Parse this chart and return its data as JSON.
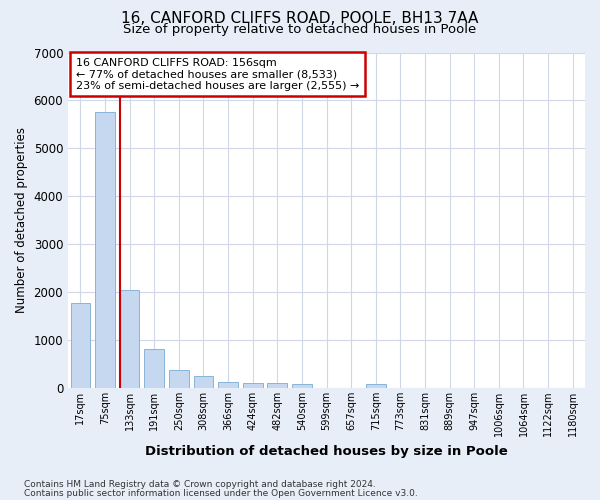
{
  "title1": "16, CANFORD CLIFFS ROAD, POOLE, BH13 7AA",
  "title2": "Size of property relative to detached houses in Poole",
  "xlabel": "Distribution of detached houses by size in Poole",
  "ylabel": "Number of detached properties",
  "categories": [
    "17sqm",
    "75sqm",
    "133sqm",
    "191sqm",
    "250sqm",
    "308sqm",
    "366sqm",
    "424sqm",
    "482sqm",
    "540sqm",
    "599sqm",
    "657sqm",
    "715sqm",
    "773sqm",
    "831sqm",
    "889sqm",
    "947sqm",
    "1006sqm",
    "1064sqm",
    "1122sqm",
    "1180sqm"
  ],
  "values": [
    1780,
    5750,
    2050,
    820,
    370,
    240,
    130,
    110,
    100,
    80,
    0,
    0,
    80,
    0,
    0,
    0,
    0,
    0,
    0,
    0,
    0
  ],
  "bar_color": "#c5d8f0",
  "bar_edge_color": "#7aadd4",
  "vline_color": "#cc0000",
  "vline_pos": 1.6,
  "annotation_line1": "16 CANFORD CLIFFS ROAD: 156sqm",
  "annotation_line2": "← 77% of detached houses are smaller (8,533)",
  "annotation_line3": "23% of semi-detached houses are larger (2,555) →",
  "annotation_box_edgecolor": "#cc0000",
  "ylim": [
    0,
    7000
  ],
  "yticks": [
    0,
    1000,
    2000,
    3000,
    4000,
    5000,
    6000,
    7000
  ],
  "footer1": "Contains HM Land Registry data © Crown copyright and database right 2024.",
  "footer2": "Contains public sector information licensed under the Open Government Licence v3.0.",
  "fig_bg_color": "#e8eef8",
  "plot_bg_color": "#ffffff",
  "grid_color": "#d0d8e8",
  "title1_fontsize": 11,
  "title2_fontsize": 9.5
}
